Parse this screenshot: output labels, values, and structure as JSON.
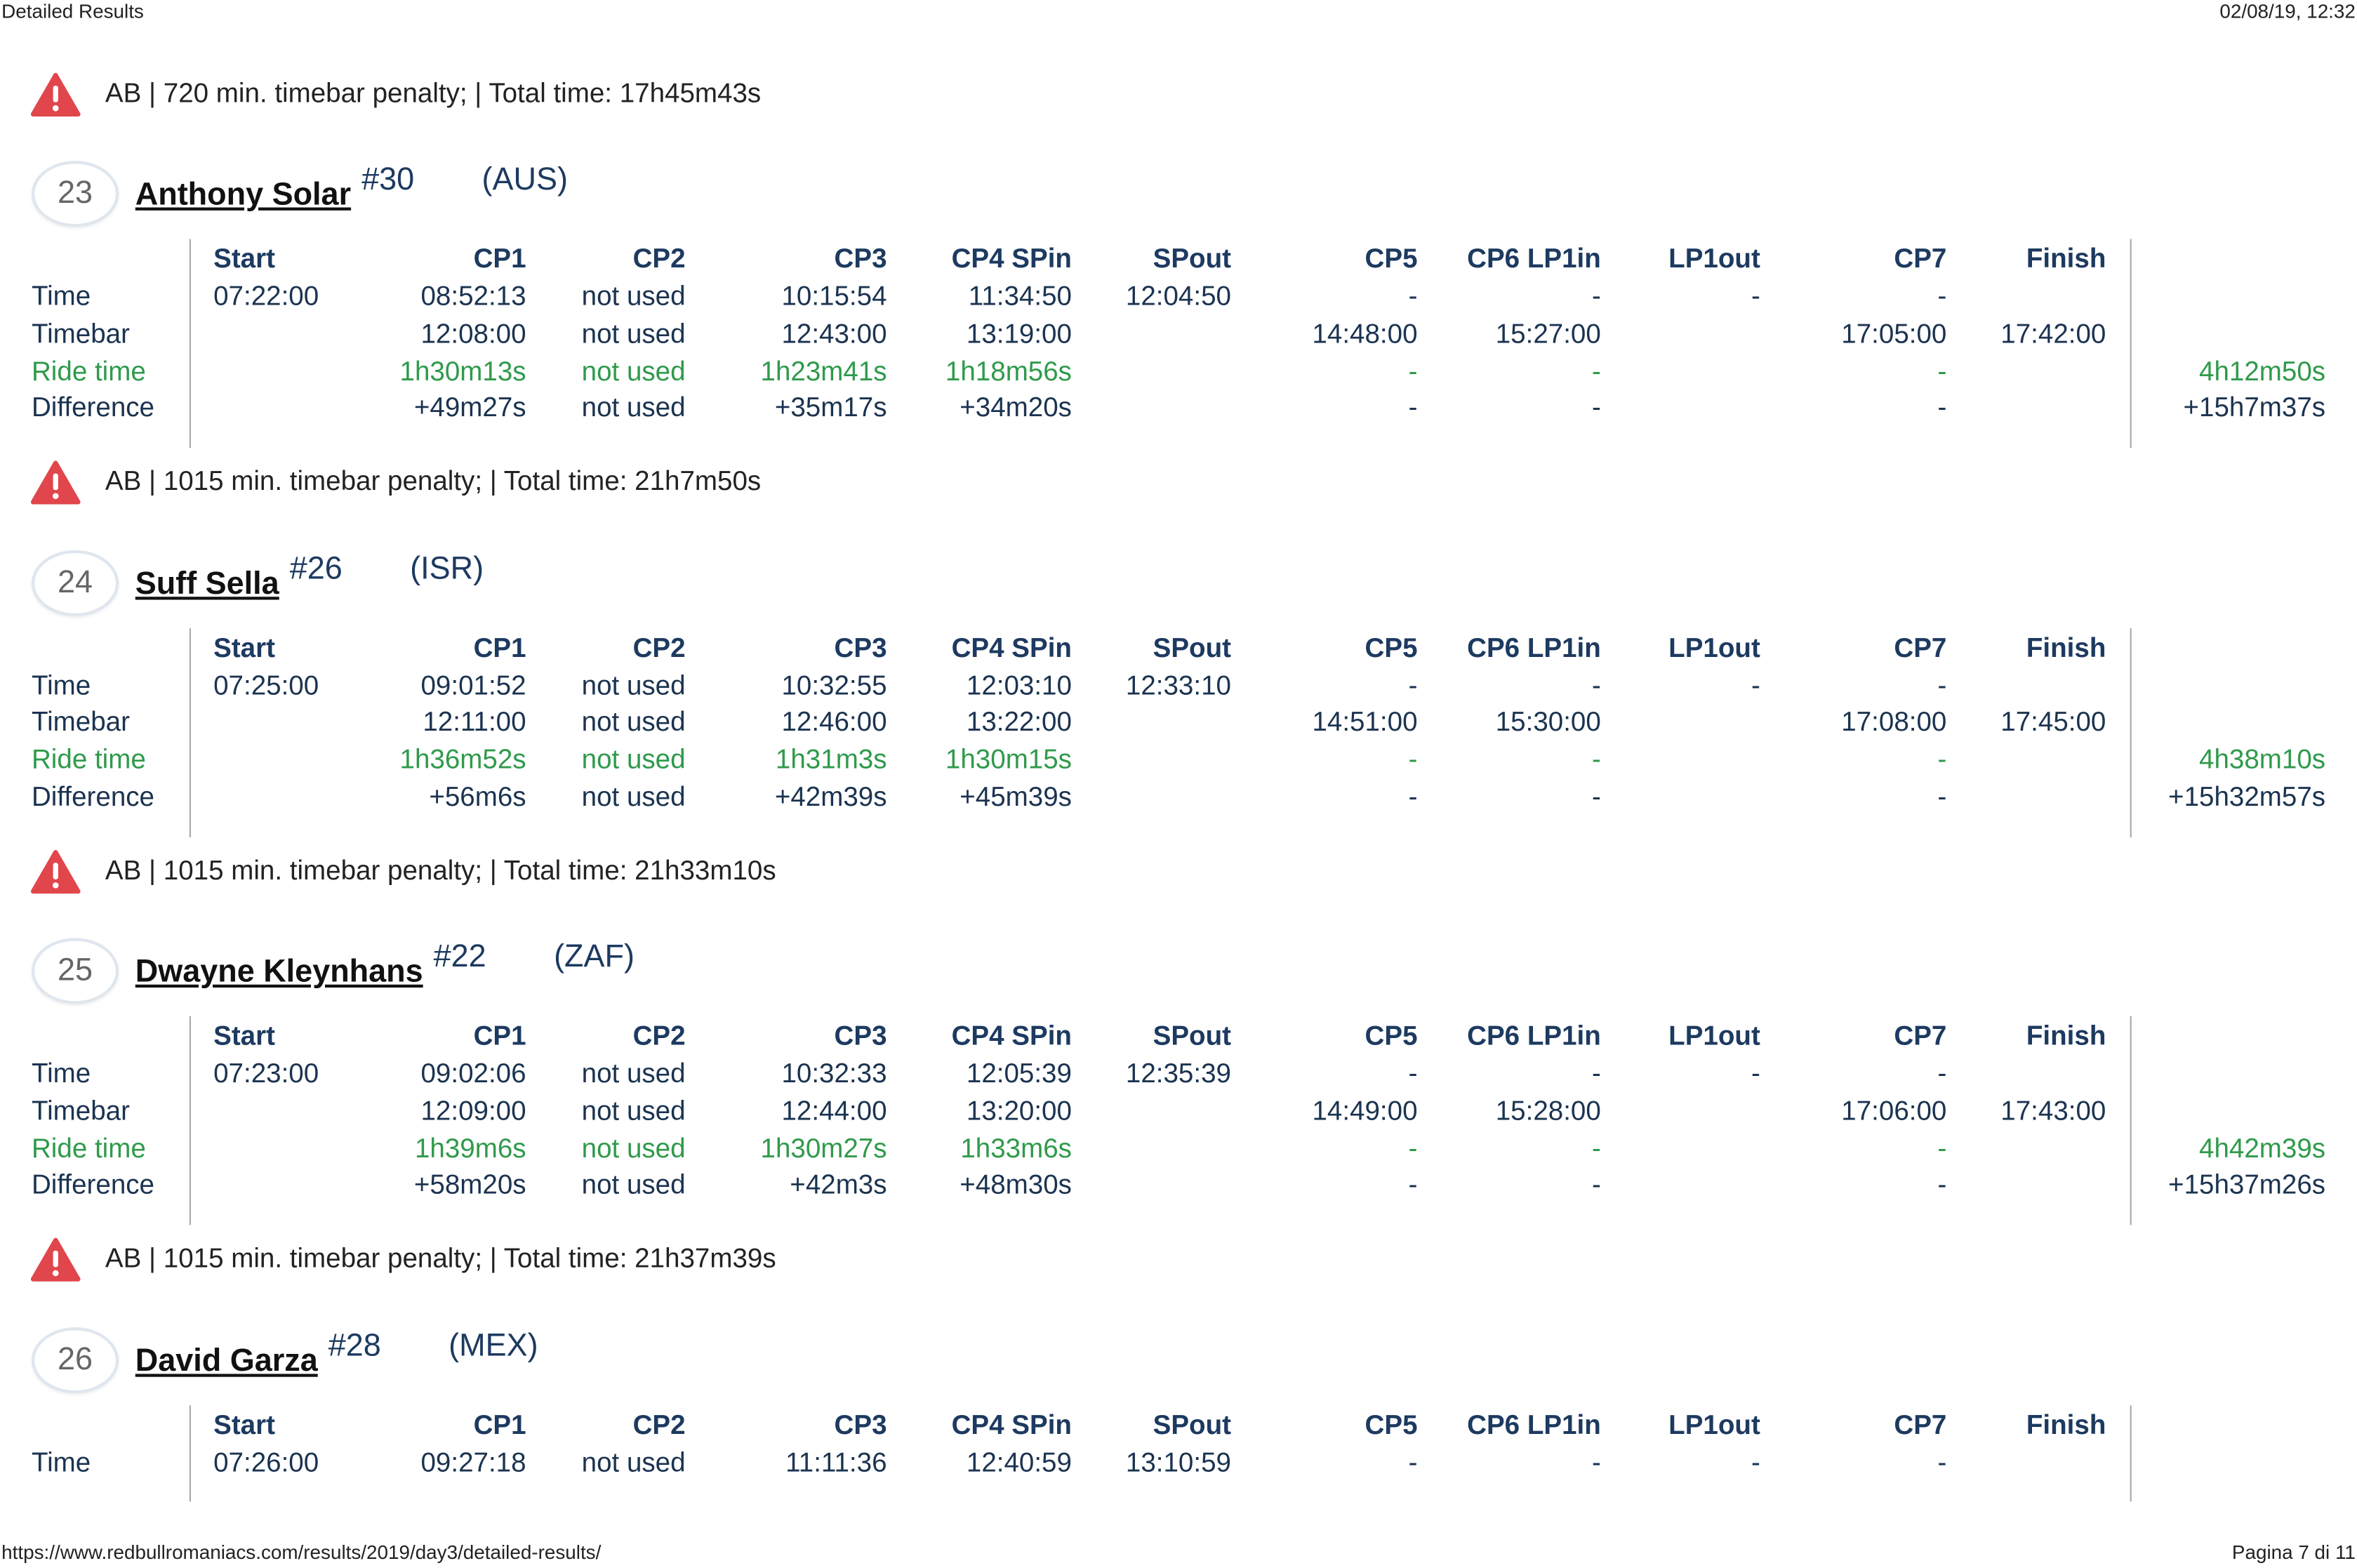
{
  "header": {
    "left": "Detailed Results",
    "right": "02/08/19, 12:32"
  },
  "footer": {
    "left": "https://www.redbullromaniacs.com/results/2019/day3/detailed-results/",
    "right": "Pagina 7 di 11"
  },
  "first_alert": "AB | 720 min. timebar penalty; | Total time: 17h45m43s",
  "columns": [
    "Start",
    "CP1",
    "CP2",
    "CP3",
    "CP4 SPin",
    "SPout",
    "CP5",
    "CP6 LP1in",
    "LP1out",
    "CP7",
    "Finish"
  ],
  "row_labels": [
    "Time",
    "Timebar",
    "Ride time",
    "Difference"
  ],
  "riders": [
    {
      "rank": "23",
      "name": "Anthony Solar",
      "number": "#30",
      "country": "(AUS)",
      "rows": [
        [
          "07:22:00",
          "08:52:13",
          "not used",
          "10:15:54",
          "11:34:50",
          "12:04:50",
          "-",
          "-",
          "-",
          "-",
          null,
          null
        ],
        [
          null,
          "12:08:00",
          "not used",
          "12:43:00",
          "13:19:00",
          null,
          "14:48:00",
          "15:27:00",
          null,
          "17:05:00",
          "17:42:00",
          null
        ],
        [
          null,
          "1h30m13s",
          "not used",
          "1h23m41s",
          "1h18m56s",
          null,
          "-",
          "-",
          null,
          "-",
          null,
          "4h12m50s"
        ],
        [
          null,
          "+49m27s",
          "not used",
          "+35m17s",
          "+34m20s",
          null,
          "-",
          "-",
          null,
          "-",
          null,
          "+15h7m37s"
        ]
      ],
      "alert": "AB | 1015 min. timebar penalty; | Total time: 21h7m50s"
    },
    {
      "rank": "24",
      "name": "Suff Sella",
      "number": "#26",
      "country": "(ISR)",
      "rows": [
        [
          "07:25:00",
          "09:01:52",
          "not used",
          "10:32:55",
          "12:03:10",
          "12:33:10",
          "-",
          "-",
          "-",
          "-",
          null,
          null
        ],
        [
          null,
          "12:11:00",
          "not used",
          "12:46:00",
          "13:22:00",
          null,
          "14:51:00",
          "15:30:00",
          null,
          "17:08:00",
          "17:45:00",
          null
        ],
        [
          null,
          "1h36m52s",
          "not used",
          "1h31m3s",
          "1h30m15s",
          null,
          "-",
          "-",
          null,
          "-",
          null,
          "4h38m10s"
        ],
        [
          null,
          "+56m6s",
          "not used",
          "+42m39s",
          "+45m39s",
          null,
          "-",
          "-",
          null,
          "-",
          null,
          "+15h32m57s"
        ]
      ],
      "alert": "AB | 1015 min. timebar penalty; | Total time: 21h33m10s"
    },
    {
      "rank": "25",
      "name": "Dwayne Kleynhans",
      "number": "#22",
      "country": "(ZAF)",
      "rows": [
        [
          "07:23:00",
          "09:02:06",
          "not used",
          "10:32:33",
          "12:05:39",
          "12:35:39",
          "-",
          "-",
          "-",
          "-",
          null,
          null
        ],
        [
          null,
          "12:09:00",
          "not used",
          "12:44:00",
          "13:20:00",
          null,
          "14:49:00",
          "15:28:00",
          null,
          "17:06:00",
          "17:43:00",
          null
        ],
        [
          null,
          "1h39m6s",
          "not used",
          "1h30m27s",
          "1h33m6s",
          null,
          "-",
          "-",
          null,
          "-",
          null,
          "4h42m39s"
        ],
        [
          null,
          "+58m20s",
          "not used",
          "+42m3s",
          "+48m30s",
          null,
          "-",
          "-",
          null,
          "-",
          null,
          "+15h37m26s"
        ]
      ],
      "alert": "AB | 1015 min. timebar penalty; | Total time: 21h37m39s"
    },
    {
      "rank": "26",
      "name": "David Garza",
      "number": "#28",
      "country": "(MEX)",
      "rows": [
        [
          "07:26:00",
          "09:27:18",
          "not used",
          "11:11:36",
          "12:40:59",
          "13:10:59",
          "-",
          "-",
          "-",
          "-",
          null,
          null
        ]
      ]
    }
  ]
}
